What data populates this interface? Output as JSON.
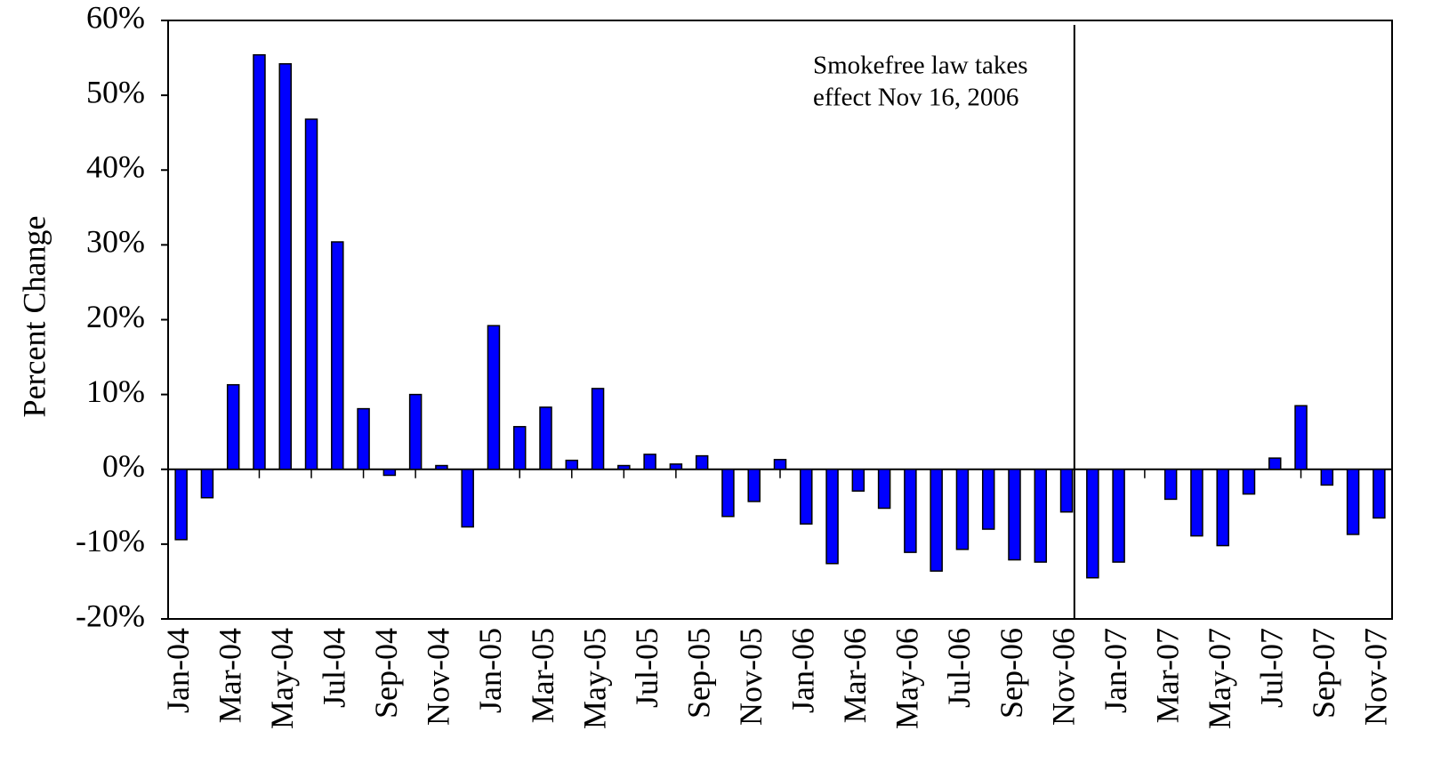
{
  "chart_data": {
    "type": "bar",
    "y_label": "Percent Change",
    "annotation": [
      "Smokefree law takes",
      "effect Nov 16, 2006"
    ],
    "categories": [
      "Jan-04",
      null,
      "Mar-04",
      null,
      "May-04",
      null,
      "Jul-04",
      null,
      "Sep-04",
      null,
      "Nov-04",
      null,
      "Jan-05",
      null,
      "Mar-05",
      null,
      "May-05",
      null,
      "Jul-05",
      null,
      "Sep-05",
      null,
      "Nov-05",
      null,
      "Jan-06",
      null,
      "Mar-06",
      null,
      "May-06",
      null,
      "Jul-06",
      null,
      "Sep-06",
      null,
      "Nov-06",
      null,
      "Jan-07",
      null,
      "Mar-07",
      null,
      "May-07",
      null,
      "Jul-07",
      null,
      "Sep-07",
      null,
      "Nov-07"
    ],
    "values": [
      -9.4,
      -3.8,
      11.3,
      55.4,
      54.2,
      46.8,
      30.4,
      8.1,
      -0.8,
      10.0,
      0.5,
      -7.7,
      19.2,
      5.7,
      8.3,
      1.2,
      10.8,
      0.5,
      2.0,
      0.7,
      1.8,
      -6.3,
      -4.3,
      1.3,
      -7.3,
      -12.6,
      -2.9,
      -5.2,
      -11.1,
      -13.6,
      -10.7,
      -8.0,
      -12.1,
      -12.4,
      -5.7,
      -14.5,
      -12.4,
      null,
      -4.0,
      -8.9,
      -10.2,
      -3.3,
      1.5,
      8.5,
      -2.1,
      -8.7,
      -6.5
    ],
    "color": "#0000ff",
    "ylim": [
      -20,
      60
    ],
    "yticks": [
      {
        "value": -20,
        "label": "-20%"
      },
      {
        "value": -10,
        "label": "-10%"
      },
      {
        "value": 0,
        "label": "0%"
      },
      {
        "value": 10,
        "label": "10%"
      },
      {
        "value": 20,
        "label": "20%"
      },
      {
        "value": 30,
        "label": "30%"
      },
      {
        "value": 40,
        "label": "40%"
      },
      {
        "value": 50,
        "label": "50%"
      },
      {
        "value": 60,
        "label": "60%"
      }
    ],
    "grid": false
  }
}
